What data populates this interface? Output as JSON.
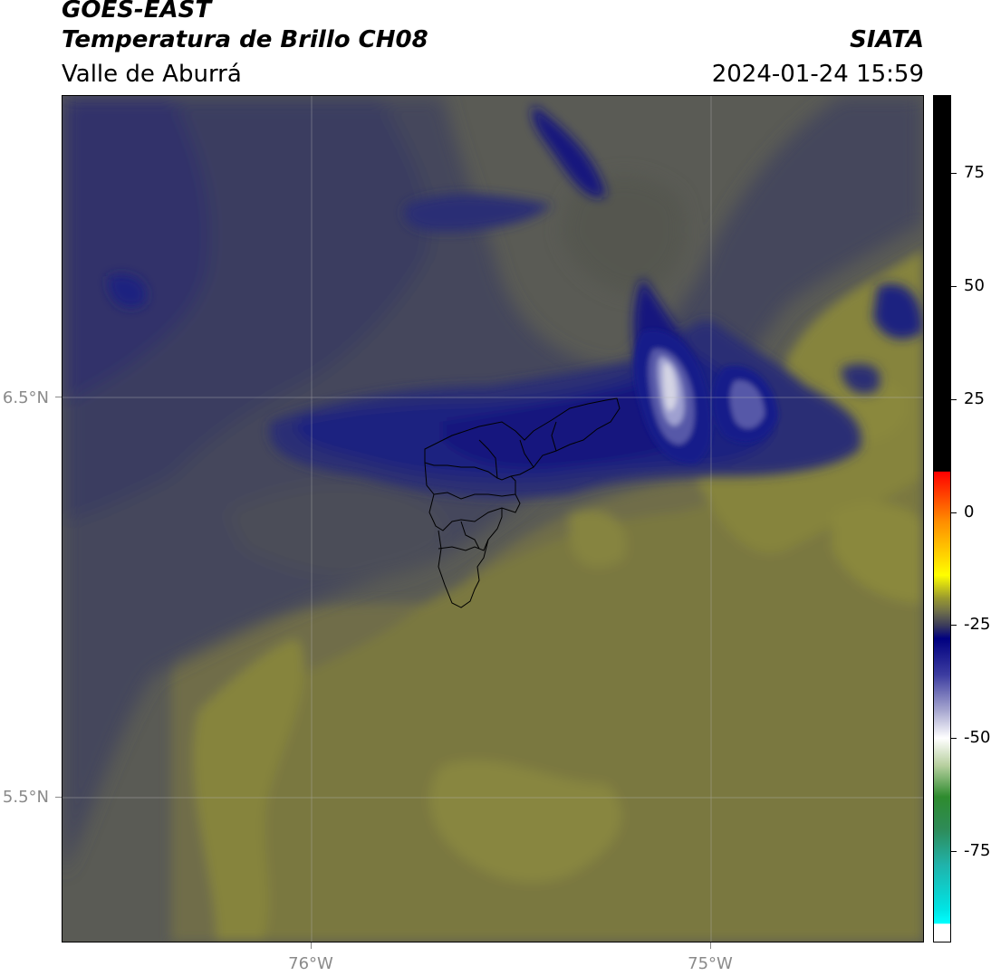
{
  "header": {
    "satellite": "GOES-EAST",
    "product": "Temperatura de Brillo CH08",
    "region": "Valle de Aburrá",
    "brand": "SIATA",
    "timestamp": "2024-01-24 15:59"
  },
  "map": {
    "lat_labels": [
      "6.5°N",
      "5.5°N"
    ],
    "lon_labels": [
      "76°W",
      "75°W"
    ],
    "lat_values": [
      6.5,
      5.5
    ],
    "lon_values": [
      -76.0,
      -75.0
    ],
    "extent": {
      "lon_min": -76.62,
      "lon_max": -74.53,
      "lat_min": 5.14,
      "lat_max": 7.25
    },
    "colors": {
      "background": "#5c5c52",
      "olive": "#7c7a3c",
      "olive_light": "#8b8a3d",
      "gray": "#4e4e56",
      "slate": "#3e3f5c",
      "navy": "#242a6e",
      "deep_blue": "#12177e",
      "cloud_top": "#d4d4e4",
      "boundary": "#000000"
    }
  },
  "colorbar": {
    "labels": [
      "75",
      "50",
      "25",
      "0",
      "-25",
      "-50",
      "-75"
    ],
    "values": [
      75,
      50,
      25,
      0,
      -25,
      -50,
      -75
    ],
    "range": [
      -95,
      92
    ],
    "stops": [
      {
        "value": 92,
        "color": "#000000"
      },
      {
        "value": 9,
        "color": "#000000"
      },
      {
        "value": 8.9,
        "color": "#ff0000"
      },
      {
        "value": -2,
        "color": "#ff8c00"
      },
      {
        "value": -10,
        "color": "#ffd700"
      },
      {
        "value": -14,
        "color": "#ffff00"
      },
      {
        "value": -19,
        "color": "#9a9a2e"
      },
      {
        "value": -22,
        "color": "#6f6f4a"
      },
      {
        "value": -25,
        "color": "#3c3c5a"
      },
      {
        "value": -28,
        "color": "#000080"
      },
      {
        "value": -36,
        "color": "#3c3ca0"
      },
      {
        "value": -44,
        "color": "#a8a8d0"
      },
      {
        "value": -50,
        "color": "#ffffff"
      },
      {
        "value": -56,
        "color": "#b8d0a0"
      },
      {
        "value": -63,
        "color": "#2e8b2e"
      },
      {
        "value": -70,
        "color": "#2e8b57"
      },
      {
        "value": -78,
        "color": "#20b2aa"
      },
      {
        "value": -88,
        "color": "#00e5e5"
      },
      {
        "value": -91,
        "color": "#00ffff"
      },
      {
        "value": -91.1,
        "color": "#ffffff"
      },
      {
        "value": -95,
        "color": "#ffffff"
      }
    ]
  }
}
